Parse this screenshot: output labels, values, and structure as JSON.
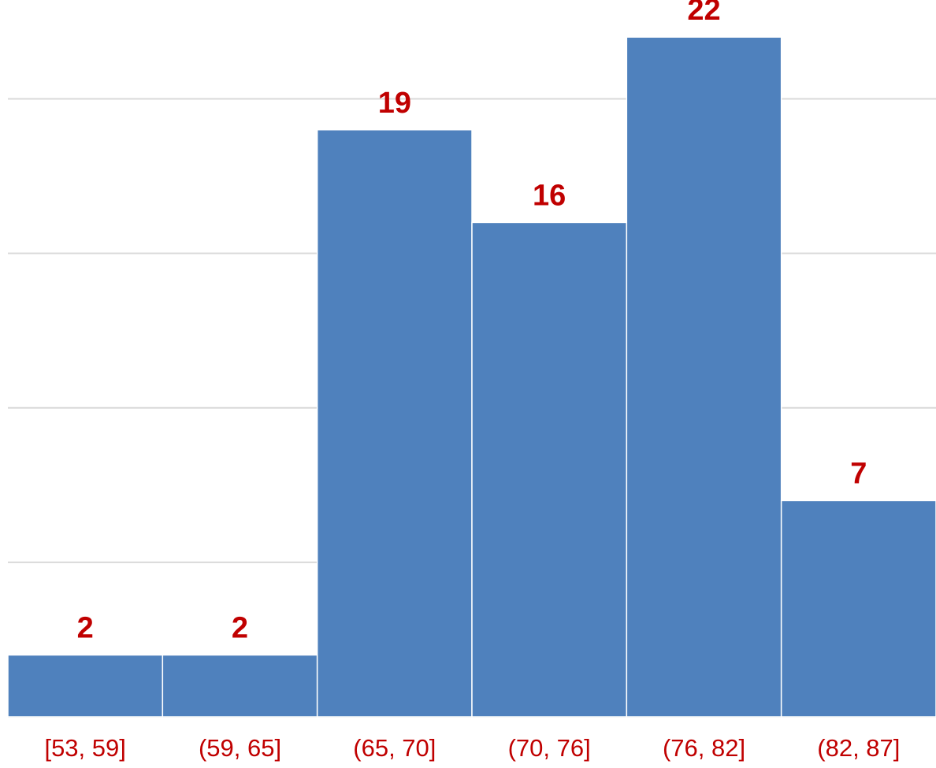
{
  "chart_data": {
    "type": "bar",
    "categories": [
      "[53, 59]",
      "(59, 65]",
      "(65, 70]",
      "(70, 76]",
      "(76, 82]",
      "(82, 87]"
    ],
    "values": [
      2,
      2,
      19,
      16,
      22,
      7
    ],
    "color": "#4f81bd",
    "ylim": [
      0,
      23.2
    ],
    "yticks": [
      0,
      5,
      10,
      15,
      20
    ],
    "grid": true
  }
}
